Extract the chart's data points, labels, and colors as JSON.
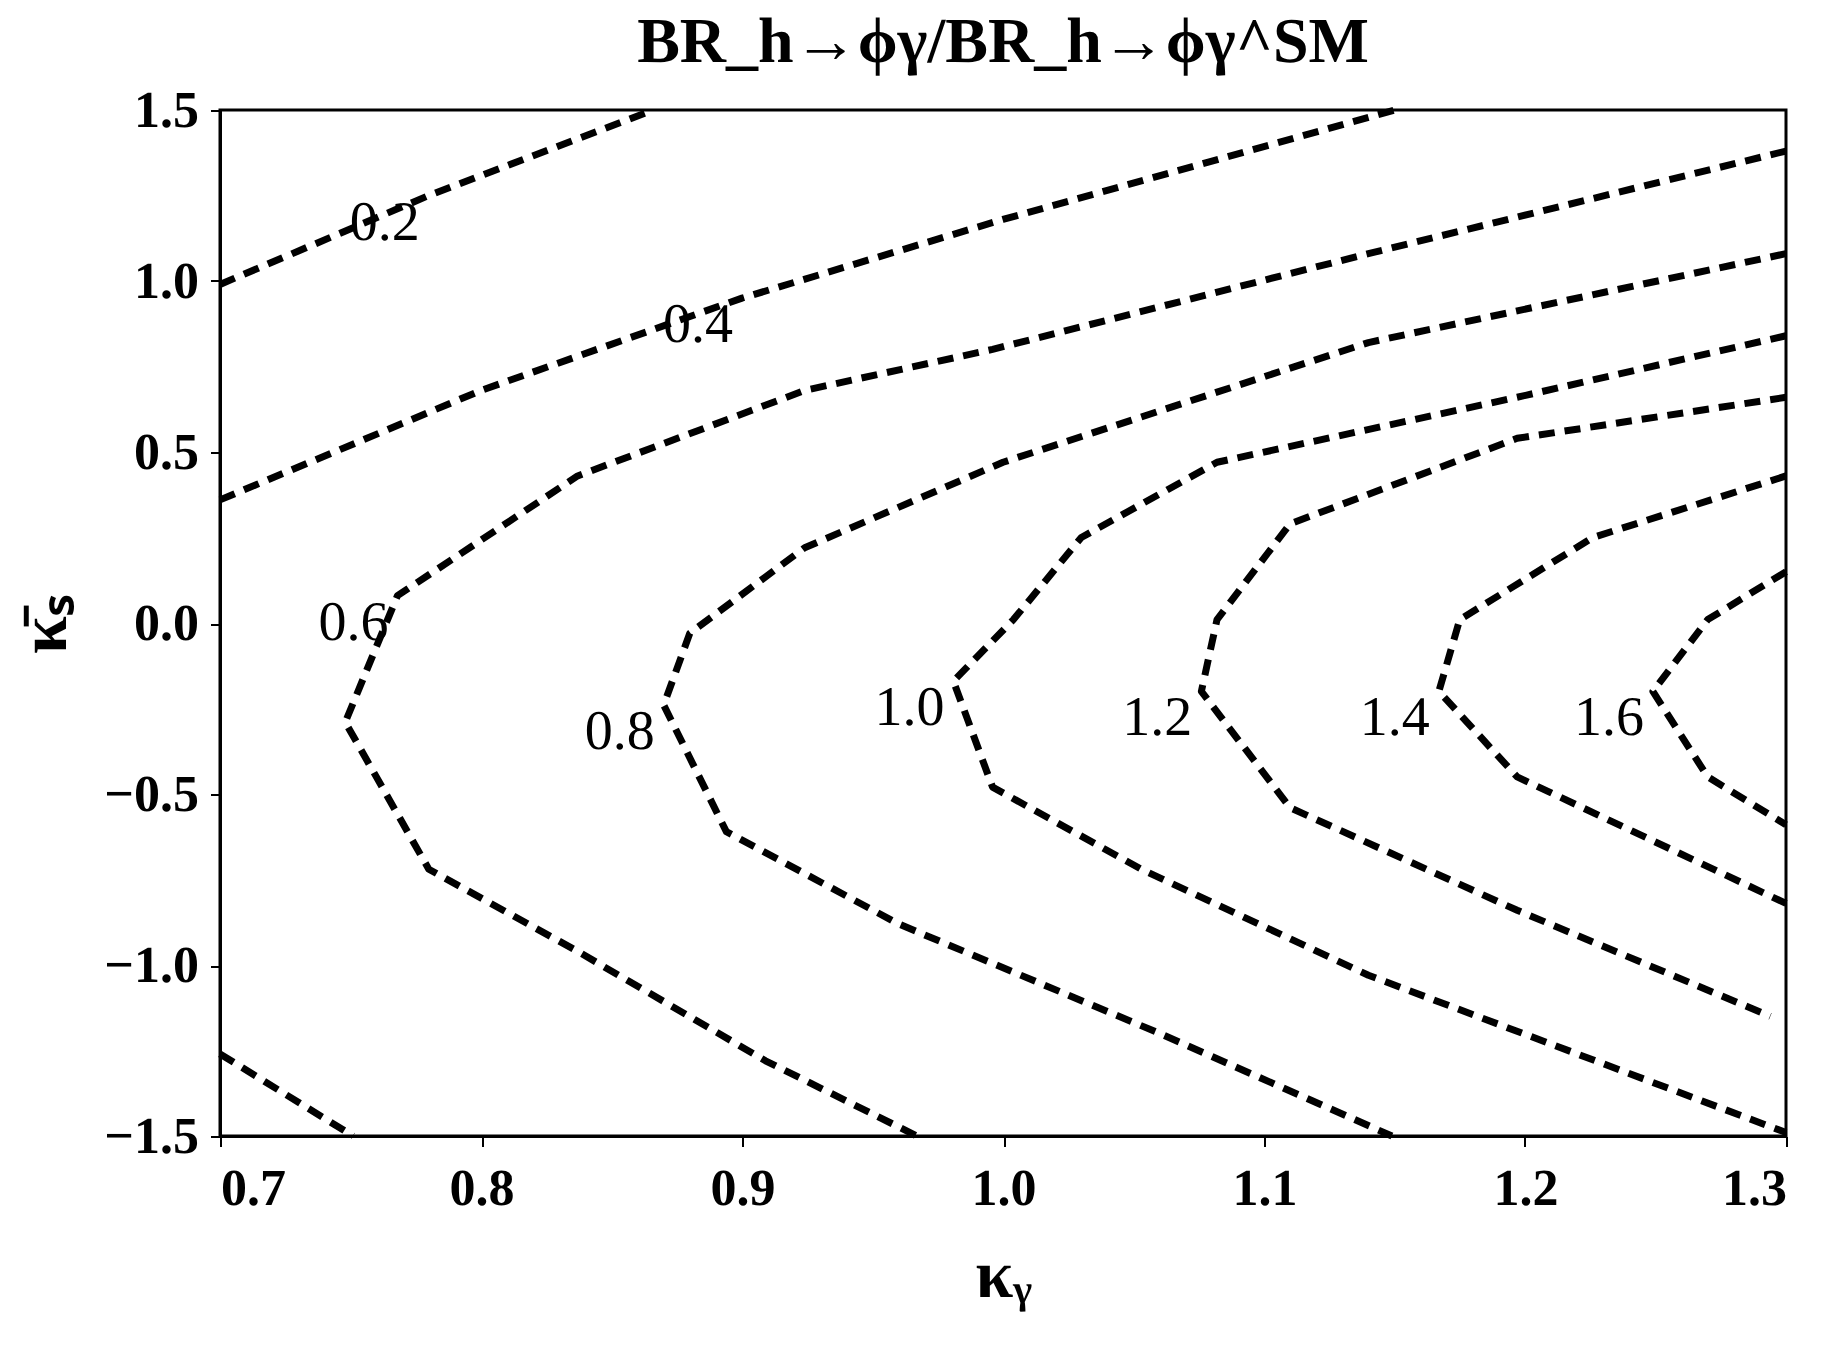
{
  "chart_data": {
    "type": "line",
    "title": "BR_h→ϕγ/BR_h→ϕγ^SM",
    "xlabel": "κᵧ",
    "ylabel": "κ̄ₛ",
    "line_style": "dashed",
    "marker": "none",
    "grid": false,
    "xlim": [
      0.7,
      1.3
    ],
    "ylim": [
      -1.5,
      1.5
    ],
    "xticks": [
      0.7,
      0.8,
      0.9,
      {
        "value": 1.0,
        "label": "1.0"
      },
      1.1,
      1.2,
      1.3
    ],
    "yticks": [
      {
        "value": -1.5,
        "label": "−1.5"
      },
      {
        "value": -1.0,
        "label": "−1.0"
      },
      {
        "value": -0.5,
        "label": "−0.5"
      },
      {
        "value": 0.0,
        "label": "0.0"
      },
      0.5,
      {
        "value": 1.0,
        "label": "1.0"
      },
      1.5
    ],
    "series": [
      {
        "name": "0.2",
        "color": "#000000",
        "x": [
          0.7,
          0.78,
          0.866
        ],
        "values": [
          0.99,
          1.25,
          1.5
        ]
      },
      {
        "name": "0.4",
        "color": "#000000",
        "x": [
          0.7,
          0.8,
          0.9,
          1.0,
          1.15
        ],
        "values": [
          0.36,
          0.68,
          0.95,
          1.18,
          1.5
        ]
      },
      {
        "color": "#000000",
        "x": [
          0.7,
          0.751
        ],
        "values": [
          -1.26,
          -1.5
        ]
      },
      {
        "name": "0.6",
        "color": "#000000",
        "x": [
          1.3,
          1.14,
          0.996,
          0.924,
          0.837,
          0.768,
          0.748,
          0.78,
          0.837,
          0.909,
          0.967
        ],
        "values": [
          1.38,
          1.08,
          0.8,
          0.68,
          0.43,
          0.08,
          -0.29,
          -0.72,
          -0.96,
          -1.28,
          -1.5
        ]
      },
      {
        "name": "0.8",
        "color": "#000000",
        "x": [
          1.3,
          1.14,
          1.0,
          0.924,
          0.88,
          0.87,
          0.894,
          0.96,
          1.06,
          1.149
        ],
        "values": [
          1.08,
          0.82,
          0.47,
          0.22,
          -0.03,
          -0.24,
          -0.61,
          -0.88,
          -1.2,
          -1.5
        ]
      },
      {
        "name": "1.0",
        "color": "#000000",
        "x": [
          1.3,
          1.197,
          1.082,
          1.03,
          1.004,
          0.981,
          0.996,
          1.053,
          1.14,
          1.3
        ],
        "values": [
          0.84,
          0.66,
          0.47,
          0.25,
          0.01,
          -0.17,
          -0.48,
          -0.72,
          -1.03,
          -1.49
        ]
      },
      {
        "name": "1.2",
        "color": "#000000",
        "x": [
          1.3,
          1.197,
          1.11,
          1.082,
          1.076,
          1.11,
          1.197,
          1.294
        ],
        "values": [
          0.66,
          0.54,
          0.29,
          0.01,
          -0.2,
          -0.54,
          -0.84,
          -1.15
        ]
      },
      {
        "name": "1.4",
        "color": "#000000",
        "x": [
          1.3,
          1.226,
          1.175,
          1.167,
          1.197,
          1.3
        ],
        "values": [
          0.43,
          0.25,
          0.01,
          -0.2,
          -0.45,
          -0.82
        ]
      },
      {
        "name": "1.6",
        "color": "#000000",
        "x": [
          1.3,
          1.27,
          1.249,
          1.27,
          1.3
        ],
        "values": [
          0.15,
          0.01,
          -0.2,
          -0.45,
          -0.59
        ]
      }
    ]
  }
}
